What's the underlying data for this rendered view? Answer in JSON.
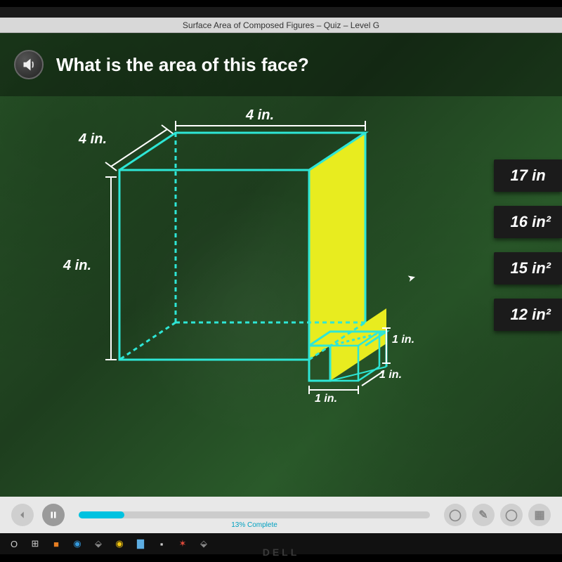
{
  "title_bar": "Surface Area of Composed Figures – Quiz – Level G",
  "question": "What is the area of this face?",
  "answers": [
    "17 in",
    "16 in²",
    "15 in²",
    "12 in²"
  ],
  "progress": {
    "percent": 13,
    "label": "13% Complete"
  },
  "dimensions": {
    "top": "4 in.",
    "depth": "4 in.",
    "height": "4 in.",
    "small_w": "1 in.",
    "small_d": "1 in.",
    "small_h": "1 in."
  },
  "brand": "DELL",
  "colors": {
    "edge": "#2ee6d6",
    "face": "#e8ec1f",
    "grass": "#275227",
    "answer_bg": "#1b1b1b",
    "progress": "#00c2e0"
  },
  "diagram": {
    "type": "3d-composed-prism",
    "big_cube_edge_in": 4,
    "small_cube_edge_in": 1,
    "highlight_face": "right",
    "stroke_width": 3
  }
}
